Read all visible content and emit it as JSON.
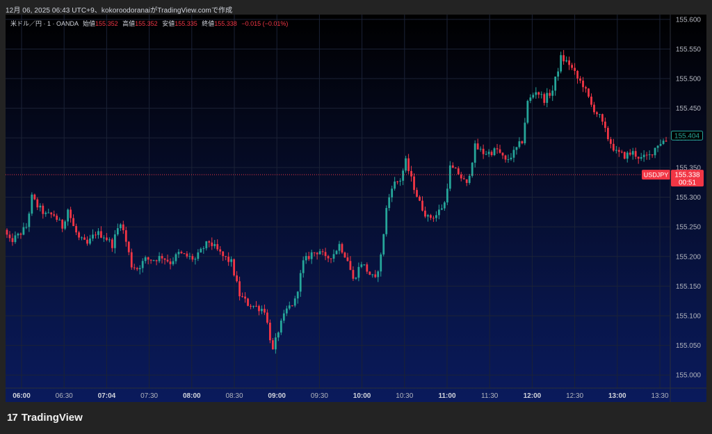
{
  "header": {
    "text": "12月 06, 2025 06:43 UTC+9、kokoroodoranaiがTradingView.comで作成"
  },
  "legend": {
    "symbol": "米ドル／円 · 1 · OANDA",
    "open_label": "始値",
    "open": "155.352",
    "high_label": "高値",
    "high": "155.352",
    "low_label": "安値",
    "low": "155.335",
    "close_label": "終値",
    "close": "155.338",
    "change": "−0.015 (−0.01%)"
  },
  "brand": {
    "logo": "17",
    "name": "TradingView"
  },
  "colors": {
    "up": "#26a69a",
    "down": "#f23645",
    "price_line": "#f23645",
    "axis_text": "#b2b5be",
    "grid": "#1b2236",
    "border": "#2a2e39"
  },
  "chart_data": {
    "type": "candlestick",
    "symbol": "USDJPY",
    "timeframe": "1",
    "y_ticks": [
      "155.600",
      "155.550",
      "155.500",
      "155.450",
      "155.400",
      "155.350",
      "155.300",
      "155.250",
      "155.200",
      "155.150",
      "155.100",
      "155.050",
      "155.000"
    ],
    "ylim": [
      154.978,
      155.608
    ],
    "x_ticks": [
      {
        "label": "06:00",
        "bold": true
      },
      {
        "label": "06:30",
        "bold": false
      },
      {
        "label": "07:04",
        "bold": true
      },
      {
        "label": "07:30",
        "bold": false
      },
      {
        "label": "08:00",
        "bold": true
      },
      {
        "label": "08:30",
        "bold": false
      },
      {
        "label": "09:00",
        "bold": true
      },
      {
        "label": "09:30",
        "bold": false
      },
      {
        "label": "10:00",
        "bold": true
      },
      {
        "label": "10:30",
        "bold": false
      },
      {
        "label": "11:00",
        "bold": true
      },
      {
        "label": "11:30",
        "bold": false
      },
      {
        "label": "12:00",
        "bold": true
      },
      {
        "label": "12:30",
        "bold": false
      },
      {
        "label": "13:00",
        "bold": true
      },
      {
        "label": "13:30",
        "bold": false
      }
    ],
    "price_path": [
      [
        0,
        155.245
      ],
      [
        2,
        155.225
      ],
      [
        5,
        155.235
      ],
      [
        8,
        155.25
      ],
      [
        10,
        155.3
      ],
      [
        12,
        155.285
      ],
      [
        15,
        155.27
      ],
      [
        18,
        155.27
      ],
      [
        21,
        155.25
      ],
      [
        23,
        155.28
      ],
      [
        25,
        155.25
      ],
      [
        27,
        155.23
      ],
      [
        30,
        155.22
      ],
      [
        33,
        155.24
      ],
      [
        36,
        155.235
      ],
      [
        39,
        155.22
      ],
      [
        42,
        155.26
      ],
      [
        44,
        155.225
      ],
      [
        46,
        155.185
      ],
      [
        48,
        155.18
      ],
      [
        51,
        155.195
      ],
      [
        54,
        155.195
      ],
      [
        57,
        155.2
      ],
      [
        60,
        155.19
      ],
      [
        63,
        155.205
      ],
      [
        66,
        155.2
      ],
      [
        69,
        155.195
      ],
      [
        72,
        155.215
      ],
      [
        74,
        155.225
      ],
      [
        76,
        155.215
      ],
      [
        79,
        155.2
      ],
      [
        82,
        155.19
      ],
      [
        85,
        155.135
      ],
      [
        88,
        155.12
      ],
      [
        91,
        155.115
      ],
      [
        94,
        155.11
      ],
      [
        97,
        155.04
      ],
      [
        99,
        155.075
      ],
      [
        102,
        155.11
      ],
      [
        105,
        155.125
      ],
      [
        108,
        155.19
      ],
      [
        111,
        155.205
      ],
      [
        114,
        155.21
      ],
      [
        116,
        155.195
      ],
      [
        119,
        155.205
      ],
      [
        121,
        155.22
      ],
      [
        124,
        155.195
      ],
      [
        126,
        155.16
      ],
      [
        129,
        155.19
      ],
      [
        132,
        155.17
      ],
      [
        134,
        155.16
      ],
      [
        136,
        155.2
      ],
      [
        138,
        155.28
      ],
      [
        140,
        155.32
      ],
      [
        143,
        155.33
      ],
      [
        145,
        155.36
      ],
      [
        147,
        155.33
      ],
      [
        150,
        155.29
      ],
      [
        153,
        155.265
      ],
      [
        156,
        155.27
      ],
      [
        159,
        155.29
      ],
      [
        161,
        155.35
      ],
      [
        164,
        155.34
      ],
      [
        167,
        155.32
      ],
      [
        170,
        155.385
      ],
      [
        173,
        155.375
      ],
      [
        175,
        155.375
      ],
      [
        178,
        155.38
      ],
      [
        181,
        155.36
      ],
      [
        184,
        155.375
      ],
      [
        187,
        155.395
      ],
      [
        189,
        155.46
      ],
      [
        192,
        155.48
      ],
      [
        195,
        155.465
      ],
      [
        198,
        155.48
      ],
      [
        201,
        155.535
      ],
      [
        204,
        155.525
      ],
      [
        207,
        155.5
      ],
      [
        209,
        155.49
      ],
      [
        212,
        155.455
      ],
      [
        215,
        155.435
      ],
      [
        218,
        155.4
      ],
      [
        221,
        155.375
      ],
      [
        224,
        155.37
      ],
      [
        227,
        155.375
      ],
      [
        230,
        155.365
      ],
      [
        233,
        155.37
      ],
      [
        236,
        155.39
      ],
      [
        238,
        155.395
      ]
    ],
    "last_price": {
      "value": "155.338",
      "countdown": "00:51",
      "symbol": "USDJPY"
    },
    "marker": {
      "value": "155.404"
    }
  }
}
